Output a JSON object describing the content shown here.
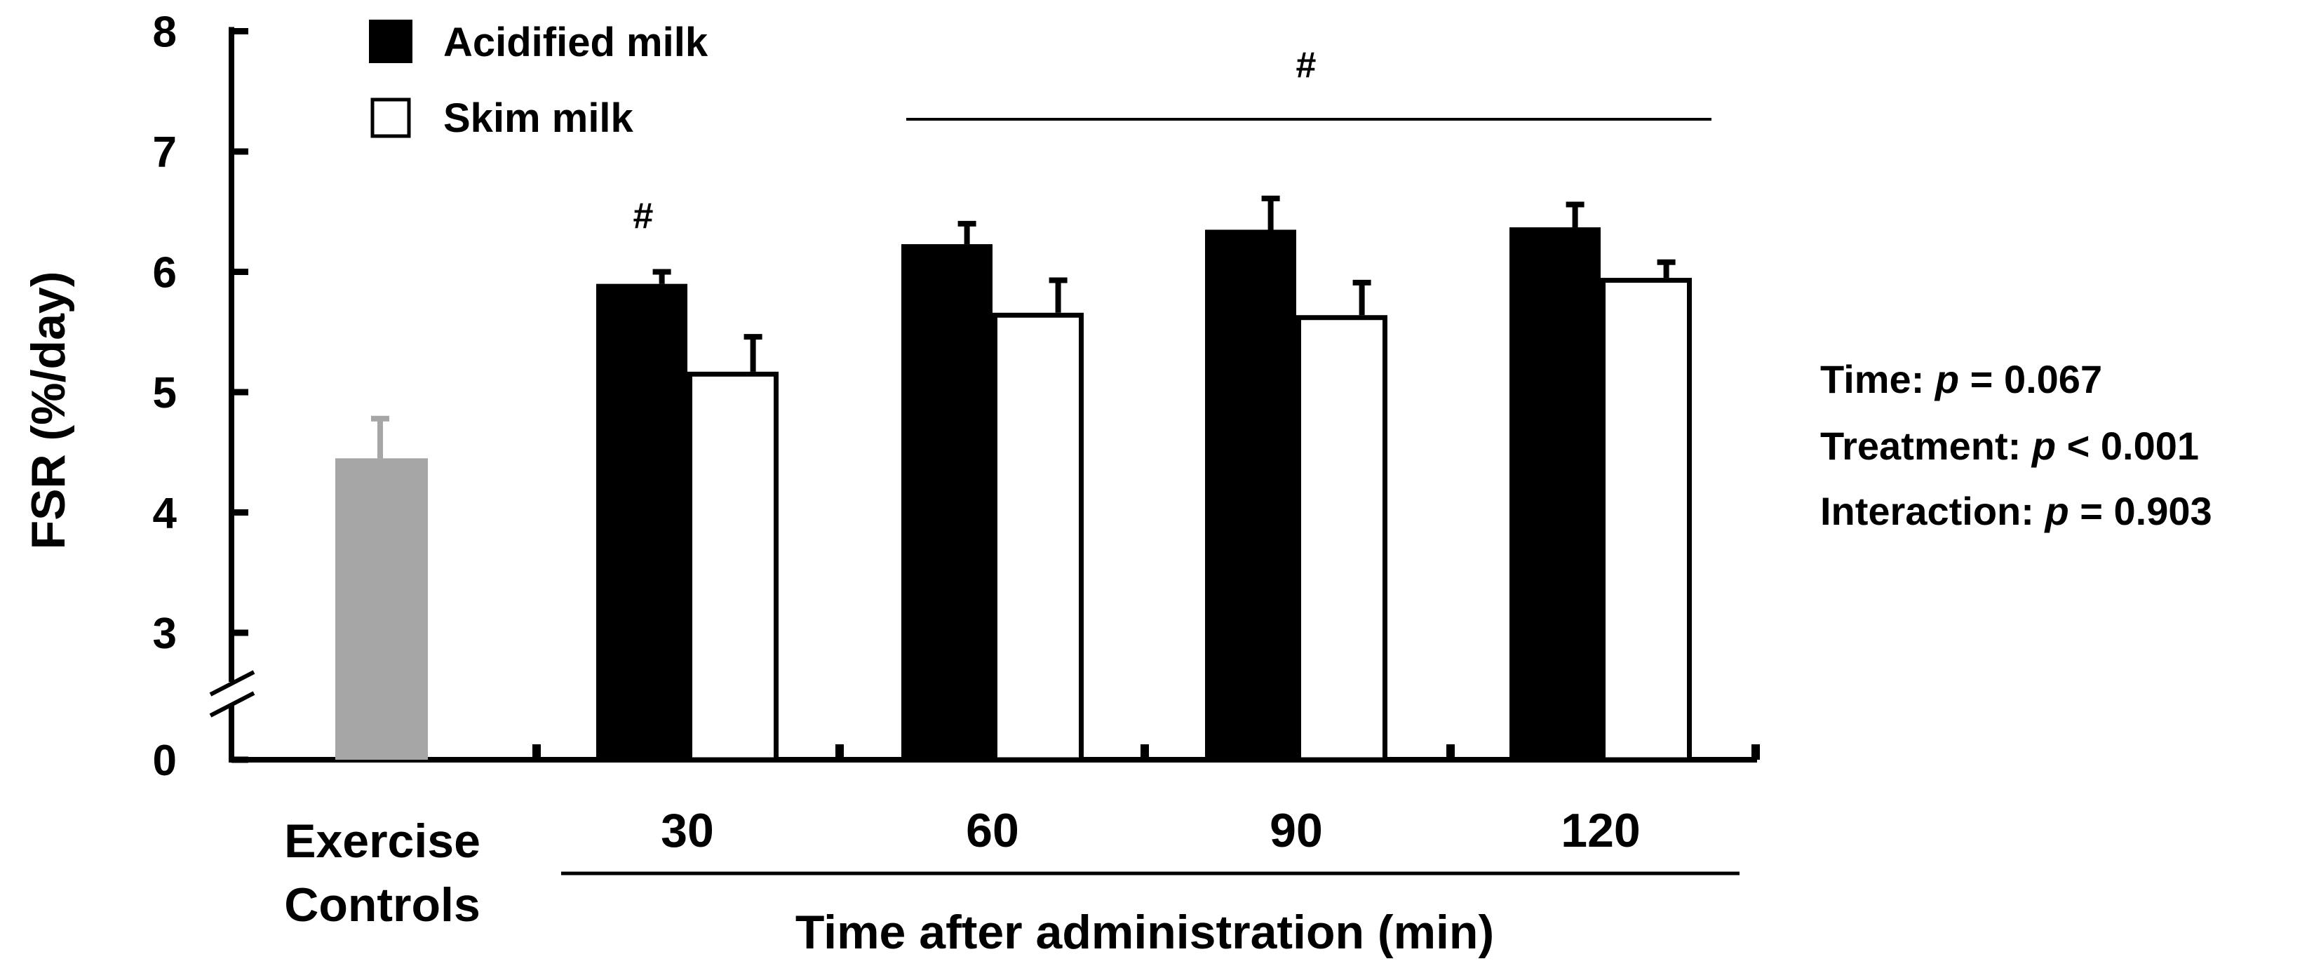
{
  "chart_data": {
    "type": "bar",
    "title": "",
    "ylabel": "FSR (%/day)",
    "xlabel": "Time  after administration  (min)",
    "y_ticks": [
      "0",
      "3",
      "4",
      "5",
      "6",
      "7",
      "8"
    ],
    "ylim": [
      2.2,
      8
    ],
    "y_axis_break": true,
    "control": {
      "label_line1": "Exercise",
      "label_line2": "Controls",
      "value": 4.45,
      "error": 0.33,
      "color": "#a6a6a6"
    },
    "categories": [
      "30",
      "60",
      "90",
      "120"
    ],
    "series": [
      {
        "name": "Acidified milk",
        "values": [
          5.9,
          6.23,
          6.35,
          6.37
        ],
        "errors": [
          0.1,
          0.17,
          0.26,
          0.19
        ],
        "color": "#000000"
      },
      {
        "name": "Skim milk",
        "values": [
          5.17,
          5.66,
          5.64,
          5.95
        ],
        "errors": [
          0.29,
          0.27,
          0.27,
          0.13
        ],
        "color": "#ffffff"
      }
    ],
    "legend": [
      "Acidified milk",
      "Skim milk"
    ],
    "legend_position": "top-left",
    "significance": {
      "marker_30": "#",
      "bracket_label": "#",
      "bracket_from": "60",
      "bracket_to": "120"
    },
    "stats": [
      {
        "label": "Time: ",
        "p_symbol": "p",
        "rest": " = 0.067"
      },
      {
        "label": "Treatment: ",
        "p_symbol": "p",
        "rest": " < 0.001"
      },
      {
        "label": "Interaction: ",
        "p_symbol": "p",
        "rest": " = 0.903"
      }
    ]
  }
}
